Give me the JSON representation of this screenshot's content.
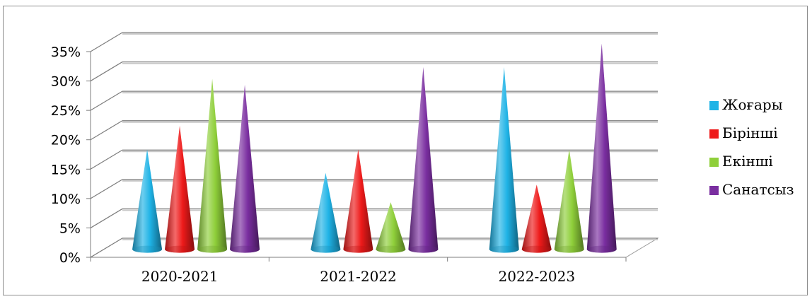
{
  "chart_data": {
    "type": "bar",
    "style": "3d-cone",
    "categories": [
      "2020-2021",
      "2021-2022",
      "2022-2023"
    ],
    "series": [
      {
        "name": "Жоғары",
        "color": "#1fb3e6",
        "values": [
          17,
          13,
          31
        ]
      },
      {
        "name": "Бірінші",
        "color": "#ee1a1a",
        "values": [
          21,
          17,
          11
        ]
      },
      {
        "name": "Екінші",
        "color": "#8fcf3a",
        "values": [
          29,
          8,
          17
        ]
      },
      {
        "name": "Санатсыз",
        "color": "#7a2ea0",
        "values": [
          28,
          31,
          35
        ]
      }
    ],
    "ylim": [
      0,
      35
    ],
    "yticks": [
      "0%",
      "5%",
      "10%",
      "15%",
      "20%",
      "25%",
      "30%",
      "35%"
    ],
    "grid": true,
    "legend_position": "right"
  }
}
